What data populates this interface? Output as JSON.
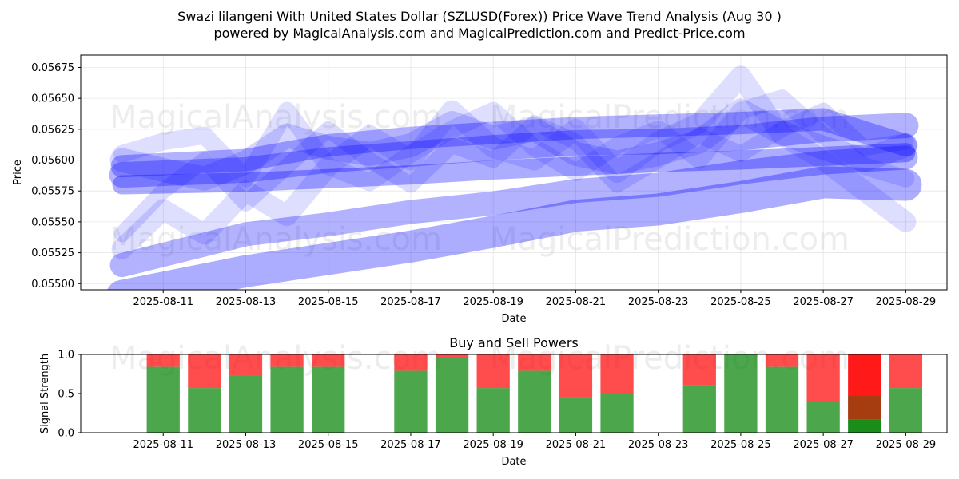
{
  "title_line1": "Swazi lilangeni With United States Dollar (SZLUSD(Forex)) Price Wave Trend Analysis (Aug 30 )",
  "title_line2": "powered by MagicalAnalysis.com and MagicalPrediction.com and Predict-Price.com",
  "watermarks": [
    "MagicalAnalysis.com",
    "MagicalPrediction.com"
  ],
  "colors": {
    "band": "#0000ff",
    "buy": "#008000",
    "sell": "#ff0000"
  },
  "chart_data": [
    {
      "type": "line",
      "title": "",
      "xlabel": "Date",
      "ylabel": "Price",
      "xlim": [
        "2025-08-09",
        "2025-08-30"
      ],
      "ylim": [
        0.05495,
        0.05685
      ],
      "grid": true,
      "x_ticks": [
        "2025-08-11",
        "2025-08-13",
        "2025-08-15",
        "2025-08-17",
        "2025-08-19",
        "2025-08-21",
        "2025-08-23",
        "2025-08-25",
        "2025-08-27",
        "2025-08-29"
      ],
      "y_ticks": [
        "0.05500",
        "0.05525",
        "0.05550",
        "0.05575",
        "0.05600",
        "0.05625",
        "0.05650",
        "0.05675"
      ],
      "series": [
        {
          "x": [
            "2025-08-10",
            "2025-08-13",
            "2025-08-15",
            "2025-08-17",
            "2025-08-19",
            "2025-08-21",
            "2025-08-23",
            "2025-08-25",
            "2025-08-27",
            "2025-08-29"
          ],
          "values": [
            0.05588,
            0.05592,
            0.056,
            0.05605,
            0.0561,
            0.05614,
            0.05615,
            0.05618,
            0.05625,
            0.05628
          ]
        },
        {
          "x": [
            "2025-08-10",
            "2025-08-13",
            "2025-08-15",
            "2025-08-17",
            "2025-08-19",
            "2025-08-21",
            "2025-08-23",
            "2025-08-25",
            "2025-08-27",
            "2025-08-29"
          ],
          "values": [
            0.05595,
            0.056,
            0.05612,
            0.05618,
            0.05622,
            0.05626,
            0.05628,
            0.0563,
            0.05633,
            0.05612
          ]
        },
        {
          "x": [
            "2025-08-10",
            "2025-08-13",
            "2025-08-15",
            "2025-08-17",
            "2025-08-19",
            "2025-08-21",
            "2025-08-23",
            "2025-08-25",
            "2025-08-27",
            "2025-08-29"
          ],
          "values": [
            0.0558,
            0.05582,
            0.05585,
            0.05588,
            0.05592,
            0.05595,
            0.05598,
            0.056,
            0.05603,
            0.05606
          ]
        },
        {
          "x": [
            "2025-08-10",
            "2025-08-13",
            "2025-08-15",
            "2025-08-17",
            "2025-08-19",
            "2025-08-21",
            "2025-08-23",
            "2025-08-25",
            "2025-08-27",
            "2025-08-29"
          ],
          "values": [
            0.05515,
            0.0554,
            0.05548,
            0.05558,
            0.05565,
            0.05575,
            0.0558,
            0.0559,
            0.05598,
            0.05602
          ]
        },
        {
          "x": [
            "2025-08-10",
            "2025-08-13",
            "2025-08-15",
            "2025-08-17",
            "2025-08-19",
            "2025-08-21",
            "2025-08-23",
            "2025-08-25",
            "2025-08-27",
            "2025-08-29"
          ],
          "values": [
            0.0549,
            0.0551,
            0.0552,
            0.0553,
            0.05542,
            0.05555,
            0.0556,
            0.0557,
            0.05582,
            0.0558
          ]
        },
        {
          "x": [
            "2025-08-10",
            "2025-08-11",
            "2025-08-12",
            "2025-08-13",
            "2025-08-14",
            "2025-08-15",
            "2025-08-16",
            "2025-08-17",
            "2025-08-18",
            "2025-08-19",
            "2025-08-20",
            "2025-08-21",
            "2025-08-22",
            "2025-08-23",
            "2025-08-24",
            "2025-08-25",
            "2025-08-26",
            "2025-08-27",
            "2025-08-28",
            "2025-08-29"
          ],
          "values": [
            0.056,
            0.05592,
            0.05585,
            0.05598,
            0.0562,
            0.0561,
            0.05605,
            0.05612,
            0.0563,
            0.05618,
            0.05625,
            0.05605,
            0.05598,
            0.05605,
            0.05615,
            0.0564,
            0.05622,
            0.0561,
            0.056,
            0.05612
          ]
        },
        {
          "x": [
            "2025-08-10",
            "2025-08-11",
            "2025-08-12",
            "2025-08-13",
            "2025-08-14",
            "2025-08-15",
            "2025-08-16",
            "2025-08-17",
            "2025-08-18",
            "2025-08-19",
            "2025-08-20",
            "2025-08-21",
            "2025-08-22",
            "2025-08-23",
            "2025-08-24",
            "2025-08-25",
            "2025-08-26",
            "2025-08-27",
            "2025-08-28",
            "2025-08-29"
          ],
          "values": [
            0.05528,
            0.0556,
            0.0554,
            0.05575,
            0.05555,
            0.05595,
            0.0562,
            0.056,
            0.0564,
            0.0561,
            0.056,
            0.05625,
            0.0559,
            0.05615,
            0.0563,
            0.05668,
            0.0562,
            0.056,
            0.05575,
            0.0555
          ]
        },
        {
          "x": [
            "2025-08-10",
            "2025-08-11",
            "2025-08-12",
            "2025-08-13",
            "2025-08-14",
            "2025-08-15",
            "2025-08-16",
            "2025-08-17",
            "2025-08-18",
            "2025-08-19",
            "2025-08-20",
            "2025-08-21",
            "2025-08-22",
            "2025-08-23",
            "2025-08-24",
            "2025-08-25",
            "2025-08-26",
            "2025-08-27",
            "2025-08-28",
            "2025-08-29"
          ],
          "values": [
            0.05605,
            0.05615,
            0.0562,
            0.05585,
            0.0564,
            0.05595,
            0.05582,
            0.05605,
            0.05625,
            0.0564,
            0.0561,
            0.0559,
            0.05612,
            0.05625,
            0.056,
            0.0564,
            0.0565,
            0.0562,
            0.05595,
            0.05585
          ]
        },
        {
          "x": [
            "2025-08-10",
            "2025-08-11",
            "2025-08-12",
            "2025-08-13",
            "2025-08-14",
            "2025-08-15",
            "2025-08-16",
            "2025-08-17",
            "2025-08-18",
            "2025-08-19",
            "2025-08-20",
            "2025-08-21",
            "2025-08-22",
            "2025-08-23",
            "2025-08-24",
            "2025-08-25",
            "2025-08-26",
            "2025-08-27",
            "2025-08-28",
            "2025-08-29"
          ],
          "values": [
            0.0554,
            0.05575,
            0.056,
            0.05565,
            0.05595,
            0.05625,
            0.056,
            0.0558,
            0.05612,
            0.056,
            0.0563,
            0.05615,
            0.0558,
            0.056,
            0.0562,
            0.05605,
            0.05625,
            0.0564,
            0.0561,
            0.05615
          ]
        }
      ]
    },
    {
      "type": "bar",
      "title": "Buy and Sell Powers",
      "xlabel": "Date",
      "ylabel": "Signal Strength",
      "xlim": [
        "2025-08-09",
        "2025-08-30"
      ],
      "ylim": [
        0,
        1
      ],
      "y_ticks": [
        "0.0",
        "0.5",
        "1.0"
      ],
      "x_ticks": [
        "2025-08-11",
        "2025-08-13",
        "2025-08-15",
        "2025-08-17",
        "2025-08-19",
        "2025-08-21",
        "2025-08-23",
        "2025-08-25",
        "2025-08-27",
        "2025-08-29"
      ],
      "categories": [
        "2025-08-11",
        "2025-08-12",
        "2025-08-13",
        "2025-08-14",
        "2025-08-15",
        "2025-08-17",
        "2025-08-18",
        "2025-08-19",
        "2025-08-20",
        "2025-08-21",
        "2025-08-22",
        "2025-08-24",
        "2025-08-25",
        "2025-08-26",
        "2025-08-27",
        "2025-08-28",
        "2025-08-29"
      ],
      "buy": [
        0.84,
        0.57,
        0.73,
        0.84,
        0.84,
        0.79,
        0.95,
        0.57,
        0.79,
        0.45,
        0.5,
        0.61,
        1.0,
        0.84,
        0.39,
        0.17,
        0.57
      ]
    }
  ]
}
